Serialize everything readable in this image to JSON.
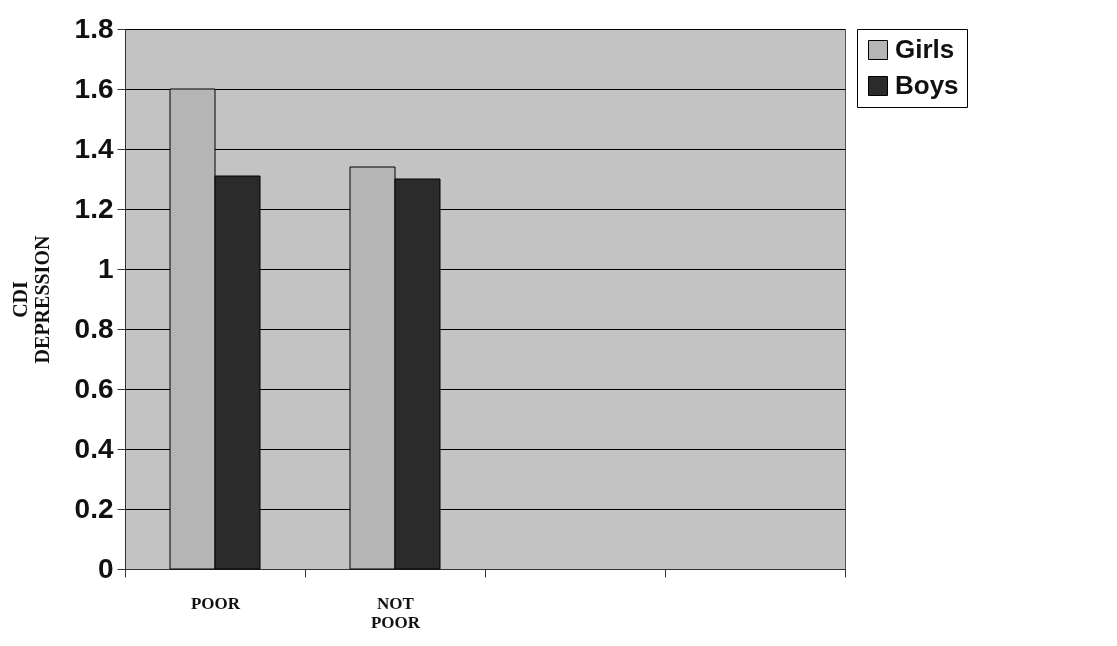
{
  "chart_data": {
    "type": "bar",
    "ylabel": "CDI DEPRESSION",
    "categories": [
      "POOR",
      "NOT POOR",
      null,
      null
    ],
    "series": [
      {
        "name": "Girls",
        "color": "#b5b5b5",
        "values": [
          1.6,
          1.34,
          null,
          null
        ]
      },
      {
        "name": "Boys",
        "color": "#2b2b2b",
        "values": [
          1.31,
          1.3,
          null,
          null
        ]
      }
    ],
    "ylim": [
      0,
      1.8
    ],
    "yticks": [
      0,
      0.2,
      0.4,
      0.6,
      0.8,
      1,
      1.2,
      1.4,
      1.6,
      1.8
    ],
    "grid": "y",
    "legend": "right"
  }
}
